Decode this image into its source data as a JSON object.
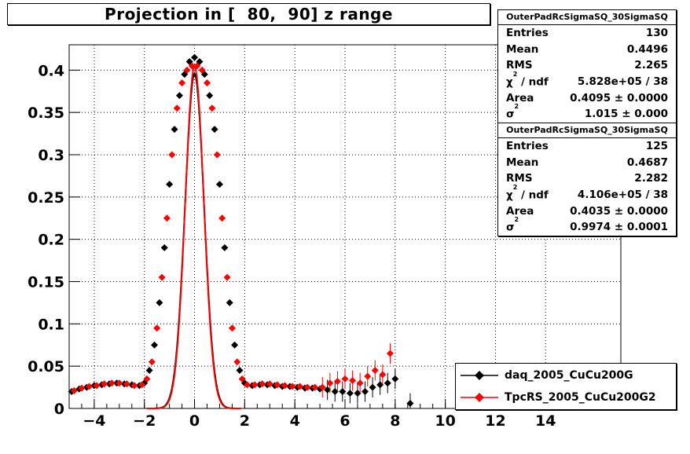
{
  "title": "Projection in [  80,  90] z range",
  "stats": [
    {
      "header": "OuterPadRcSigmaSQ_30SigmaSQ",
      "rows": [
        {
          "label": "Entries",
          "value": "130"
        },
        {
          "label": "Mean",
          "value": "0.4496"
        },
        {
          "label": "RMS",
          "value": "2.265"
        },
        {
          "label": "χ2 / ndf",
          "value": "5.828e+05 / 38"
        },
        {
          "label": "Area",
          "value": "0.4095 ± 0.0000"
        },
        {
          "label": "σ2",
          "value": "1.015 ± 0.000"
        }
      ]
    },
    {
      "header": "OuterPadRcSigmaSQ_30SigmaSQ",
      "rows": [
        {
          "label": "Entries",
          "value": "125"
        },
        {
          "label": "Mean",
          "value": "0.4687"
        },
        {
          "label": "RMS",
          "value": "2.282"
        },
        {
          "label": "χ2 / ndf",
          "value": "4.106e+05 / 38"
        },
        {
          "label": "Area",
          "value": "0.4035 ± 0.0000"
        },
        {
          "label": "σ2",
          "value": "0.9974 ± 0.0001"
        }
      ]
    }
  ],
  "legend": [
    {
      "label": "daq_2005_CuCu200G",
      "color": "#000000"
    },
    {
      "label": "TpcRS_2005_CuCu200G2",
      "color": "#ff0000"
    }
  ],
  "chart_data": {
    "type": "scatter",
    "title": "Projection in [  80,  90] z range",
    "xlim": [
      -5,
      17
    ],
    "ylim": [
      0,
      0.43
    ],
    "xticks": [
      -4,
      -2,
      0,
      2,
      4,
      6,
      8,
      10,
      12,
      14
    ],
    "yticks": [
      0,
      0.05,
      0.1,
      0.15,
      0.2,
      0.25,
      0.3,
      0.35,
      0.4
    ],
    "ytick_labels": [
      "0",
      "0.05",
      "0.1",
      "0.15",
      "0.2",
      "0.25",
      "0.3",
      "0.35",
      "0.4"
    ],
    "grid": true,
    "legend_position": "bottom-right",
    "series": [
      {
        "name": "daq_2005_CuCu200G",
        "color": "#000000",
        "x": [
          -4.9,
          -4.6,
          -4.3,
          -4.0,
          -3.7,
          -3.4,
          -3.1,
          -2.8,
          -2.5,
          -2.2,
          -2.0,
          -1.8,
          -1.6,
          -1.4,
          -1.2,
          -1.0,
          -0.8,
          -0.6,
          -0.4,
          -0.2,
          0.0,
          0.2,
          0.4,
          0.6,
          0.8,
          1.0,
          1.2,
          1.4,
          1.6,
          1.8,
          2.0,
          2.3,
          2.6,
          2.9,
          3.2,
          3.5,
          3.8,
          4.1,
          4.4,
          4.7,
          5.0,
          5.3,
          5.6,
          5.9,
          6.2,
          6.5,
          6.8,
          7.1,
          7.4,
          7.7,
          8.0,
          8.6
        ],
        "y": [
          0.02,
          0.023,
          0.025,
          0.027,
          0.028,
          0.029,
          0.03,
          0.029,
          0.028,
          0.027,
          0.03,
          0.045,
          0.075,
          0.125,
          0.19,
          0.265,
          0.33,
          0.37,
          0.395,
          0.41,
          0.415,
          0.41,
          0.395,
          0.37,
          0.33,
          0.265,
          0.19,
          0.125,
          0.075,
          0.045,
          0.03,
          0.027,
          0.028,
          0.028,
          0.027,
          0.026,
          0.026,
          0.025,
          0.024,
          0.024,
          0.023,
          0.022,
          0.02,
          0.02,
          0.018,
          0.018,
          0.02,
          0.025,
          0.028,
          0.03,
          0.035,
          0.006
        ],
        "fit": {
          "amplitude": 0.396,
          "mean": 0.0,
          "sigma": 0.38,
          "pedestal": 0.0
        }
      },
      {
        "name": "TpcRS_2005_CuCu200G2",
        "color": "#ff0000",
        "x": [
          -4.8,
          -4.5,
          -4.2,
          -3.9,
          -3.6,
          -3.3,
          -3.0,
          -2.7,
          -2.4,
          -2.1,
          -1.9,
          -1.7,
          -1.5,
          -1.3,
          -1.1,
          -0.9,
          -0.7,
          -0.5,
          -0.3,
          -0.1,
          0.1,
          0.3,
          0.5,
          0.7,
          0.9,
          1.1,
          1.3,
          1.5,
          1.7,
          1.9,
          2.1,
          2.4,
          2.7,
          3.0,
          3.3,
          3.6,
          3.9,
          4.2,
          4.5,
          4.8,
          5.1,
          5.4,
          5.7,
          6.0,
          6.3,
          6.6,
          6.9,
          7.2,
          7.5,
          7.8
        ],
        "y": [
          0.021,
          0.024,
          0.026,
          0.027,
          0.029,
          0.03,
          0.03,
          0.029,
          0.027,
          0.028,
          0.035,
          0.055,
          0.095,
          0.155,
          0.225,
          0.3,
          0.355,
          0.385,
          0.4,
          0.405,
          0.405,
          0.4,
          0.385,
          0.355,
          0.3,
          0.225,
          0.155,
          0.095,
          0.055,
          0.035,
          0.028,
          0.028,
          0.029,
          0.029,
          0.028,
          0.027,
          0.026,
          0.026,
          0.025,
          0.025,
          0.025,
          0.03,
          0.032,
          0.035,
          0.033,
          0.03,
          0.038,
          0.045,
          0.04,
          0.065
        ],
        "fit": {
          "amplitude": 0.405,
          "mean": 0.0,
          "sigma": 0.37,
          "pedestal": 0.0
        }
      }
    ]
  }
}
